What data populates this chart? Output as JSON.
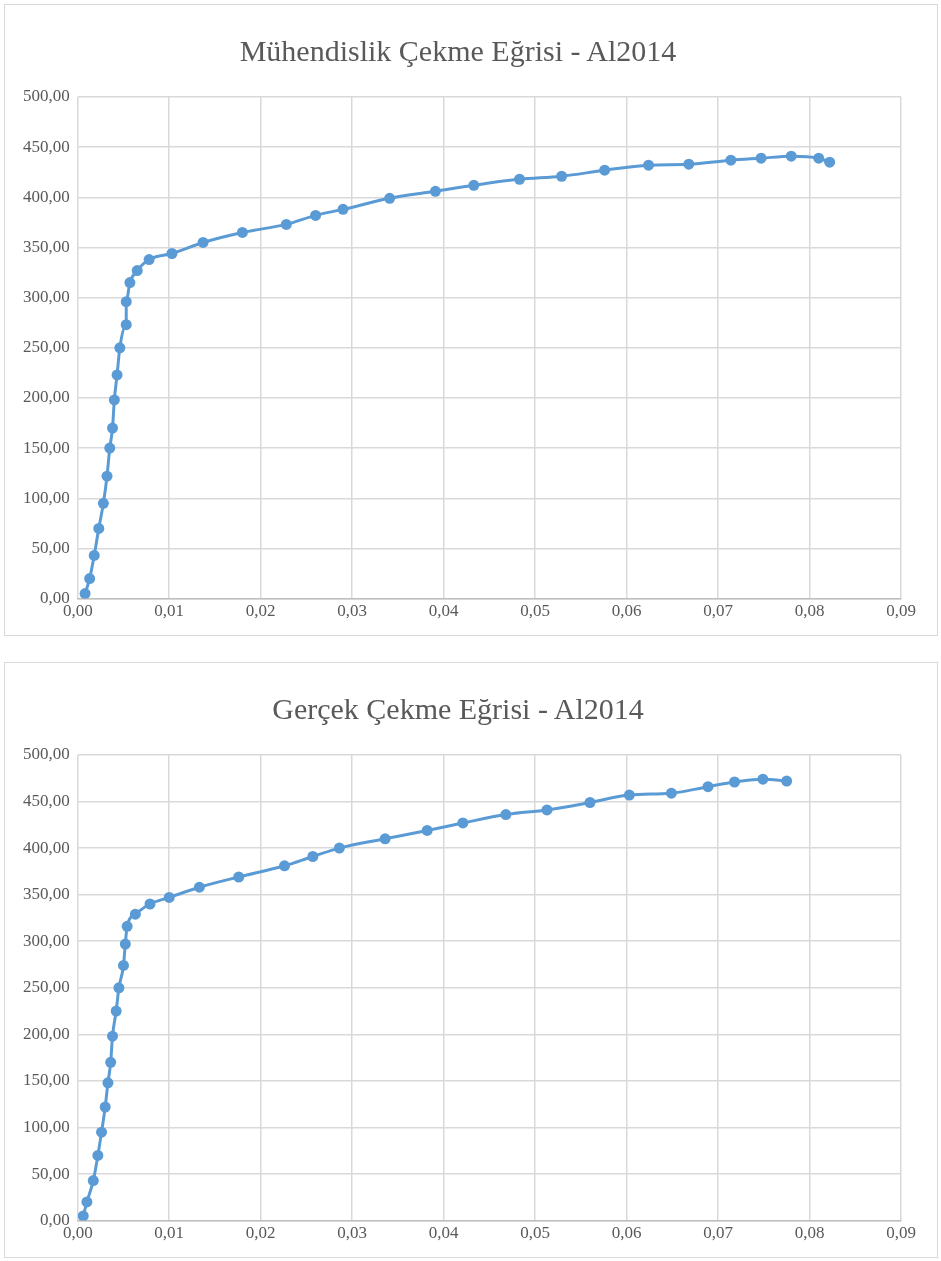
{
  "chart_data": [
    {
      "type": "line",
      "title": "Mühendislik Çekme Eğrisi - Al2014",
      "marker": "circle",
      "grid": true,
      "series": [
        {
          "color": "#5b9bd5",
          "x": [
            0.0008,
            0.0013,
            0.0018,
            0.0023,
            0.0028,
            0.0032,
            0.0035,
            0.0038,
            0.004,
            0.0043,
            0.0046,
            0.0053,
            0.0053,
            0.0057,
            0.0065,
            0.0078,
            0.0103,
            0.0137,
            0.018,
            0.0228,
            0.026,
            0.029,
            0.0341,
            0.0391,
            0.0433,
            0.0483,
            0.0529,
            0.0576,
            0.0624,
            0.0668,
            0.0714,
            0.0747,
            0.078,
            0.081,
            0.0822
          ],
          "values": [
            5,
            20,
            43,
            70,
            95,
            122,
            150,
            170,
            198,
            223,
            250,
            273,
            296,
            315,
            327,
            338,
            344,
            355,
            365,
            373,
            382,
            388,
            399,
            406,
            412,
            418,
            421,
            427,
            432,
            433,
            437,
            439,
            441,
            439,
            435
          ]
        }
      ],
      "xlim": [
        0,
        0.09
      ],
      "ylim": [
        0,
        500
      ],
      "xticks": [
        {
          "value": 0,
          "label": "0,00"
        },
        {
          "value": 0.01,
          "label": "0,01"
        },
        {
          "value": 0.02,
          "label": "0,02"
        },
        {
          "value": 0.03,
          "label": "0,03"
        },
        {
          "value": 0.04,
          "label": "0,04"
        },
        {
          "value": 0.05,
          "label": "0,05"
        },
        {
          "value": 0.06,
          "label": "0,06"
        },
        {
          "value": 0.07,
          "label": "0,07"
        },
        {
          "value": 0.08,
          "label": "0,08"
        },
        {
          "value": 0.09,
          "label": "0,09"
        }
      ],
      "yticks": [
        {
          "value": 0,
          "label": "0,00"
        },
        {
          "value": 50,
          "label": "50,00"
        },
        {
          "value": 100,
          "label": "100,00"
        },
        {
          "value": 150,
          "label": "150,00"
        },
        {
          "value": 200,
          "label": "200,00"
        },
        {
          "value": 250,
          "label": "250,00"
        },
        {
          "value": 300,
          "label": "300,00"
        },
        {
          "value": 350,
          "label": "350,00"
        },
        {
          "value": 400,
          "label": "400,00"
        },
        {
          "value": 450,
          "label": "450,00"
        },
        {
          "value": 500,
          "label": "500,00"
        }
      ]
    },
    {
      "type": "line",
      "title": "Gerçek Çekme Eğrisi - Al2014",
      "marker": "circle",
      "grid": true,
      "series": [
        {
          "color": "#5b9bd5",
          "x": [
            0.0006,
            0.001,
            0.0017,
            0.0022,
            0.0026,
            0.003,
            0.0033,
            0.0036,
            0.0038,
            0.0042,
            0.0045,
            0.005,
            0.0052,
            0.0054,
            0.0063,
            0.0079,
            0.01,
            0.0133,
            0.0176,
            0.0226,
            0.0257,
            0.0286,
            0.0336,
            0.0382,
            0.0421,
            0.0468,
            0.0513,
            0.056,
            0.0603,
            0.0649,
            0.0689,
            0.0718,
            0.0749,
            0.0775
          ],
          "values": [
            5,
            20,
            43,
            70,
            95,
            122,
            148,
            170,
            198,
            225,
            250,
            274,
            297,
            316,
            329,
            340,
            347,
            358,
            369,
            381,
            391,
            400,
            410,
            419,
            427,
            436,
            441,
            449,
            457,
            459,
            466,
            471,
            474,
            472
          ]
        }
      ],
      "xlim": [
        0,
        0.09
      ],
      "ylim": [
        0,
        500
      ],
      "xticks": [
        {
          "value": 0,
          "label": "0,00"
        },
        {
          "value": 0.01,
          "label": "0,01"
        },
        {
          "value": 0.02,
          "label": "0,02"
        },
        {
          "value": 0.03,
          "label": "0,03"
        },
        {
          "value": 0.04,
          "label": "0,04"
        },
        {
          "value": 0.05,
          "label": "0,05"
        },
        {
          "value": 0.06,
          "label": "0,06"
        },
        {
          "value": 0.07,
          "label": "0,07"
        },
        {
          "value": 0.08,
          "label": "0,08"
        },
        {
          "value": 0.09,
          "label": "0,09"
        }
      ],
      "yticks": [
        {
          "value": 0,
          "label": "0,00"
        },
        {
          "value": 50,
          "label": "50,00"
        },
        {
          "value": 100,
          "label": "100,00"
        },
        {
          "value": 150,
          "label": "150,00"
        },
        {
          "value": 200,
          "label": "200,00"
        },
        {
          "value": 250,
          "label": "250,00"
        },
        {
          "value": 300,
          "label": "300,00"
        },
        {
          "value": 350,
          "label": "350,00"
        },
        {
          "value": 400,
          "label": "400,00"
        },
        {
          "value": 450,
          "label": "450,00"
        },
        {
          "value": 500,
          "label": "500,00"
        }
      ]
    }
  ]
}
